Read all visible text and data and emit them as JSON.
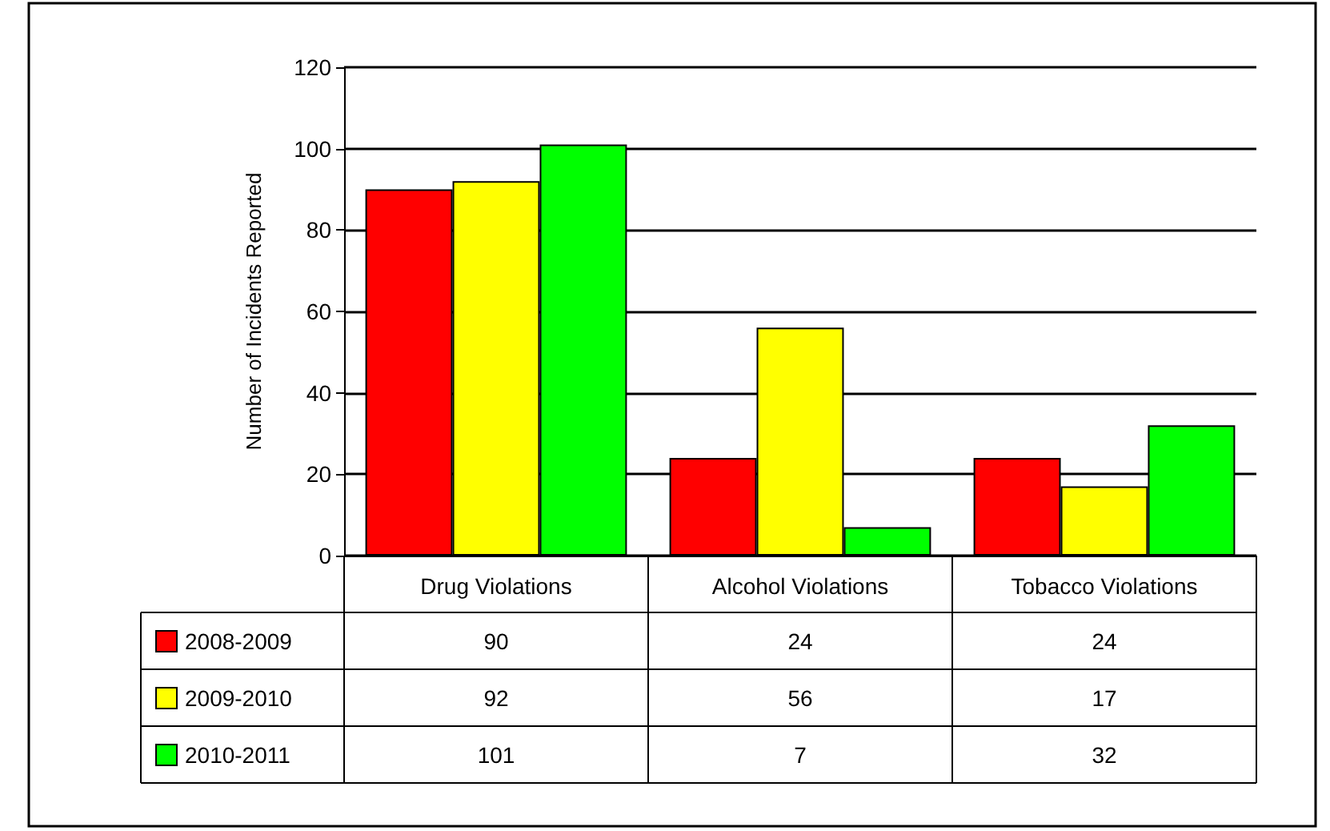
{
  "chart_data": {
    "type": "bar",
    "ylabel": "Number of Incidents Reported",
    "categories": [
      "Drug Violations",
      "Alcohol Violations",
      "Tobacco Violations"
    ],
    "series": [
      {
        "name": "2008-2009",
        "color": "#ff0000",
        "values": [
          90,
          24,
          24
        ]
      },
      {
        "name": "2009-2010",
        "color": "#ffff00",
        "values": [
          92,
          56,
          17
        ]
      },
      {
        "name": "2010-2011",
        "color": "#00ff00",
        "values": [
          101,
          7,
          32
        ]
      }
    ],
    "ylim": [
      0,
      120
    ],
    "yticks": [
      0,
      20,
      40,
      60,
      80,
      100,
      120
    ],
    "grid": "y",
    "legend": "bottom",
    "data_labels": true
  }
}
